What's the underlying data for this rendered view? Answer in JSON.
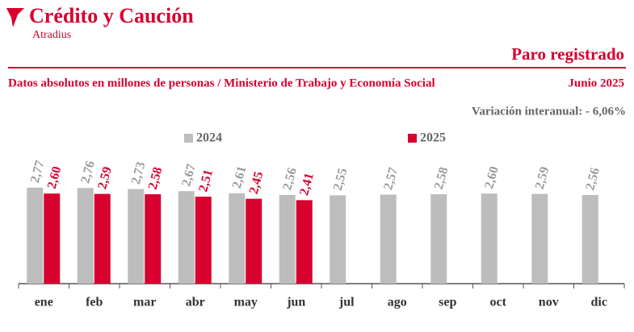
{
  "brand": {
    "name": "Crédito y Caución",
    "sub": "Atradius"
  },
  "chart_data": {
    "type": "bar",
    "title": "Paro registrado",
    "subtitle": "Datos absolutos en millones de personas / Ministerio de Trabajo y Economía Social",
    "date": "Junio 2025",
    "annotation": "Variación interanual: - 6,06%",
    "categories": [
      "ene",
      "feb",
      "mar",
      "abr",
      "may",
      "jun",
      "jul",
      "ago",
      "sep",
      "oct",
      "nov",
      "dic"
    ],
    "series": [
      {
        "name": "2024",
        "color": "#bdbdbd",
        "label_color": "#9a9a9a",
        "values": [
          2.77,
          2.76,
          2.73,
          2.67,
          2.61,
          2.56,
          2.55,
          2.57,
          2.58,
          2.6,
          2.59,
          2.56
        ],
        "value_labels": [
          "2,77",
          "2,76",
          "2,73",
          "2,67",
          "2,61",
          "2,56",
          "2,55",
          "2,57",
          "2,58",
          "2,60",
          "2,59",
          "2,56"
        ]
      },
      {
        "name": "2025",
        "color": "#d7002f",
        "label_color": "#d7002f",
        "values": [
          2.6,
          2.59,
          2.58,
          2.51,
          2.45,
          2.41,
          null,
          null,
          null,
          null,
          null,
          null
        ],
        "value_labels": [
          "2,60",
          "2,59",
          "2,58",
          "2,51",
          "2,45",
          "2,41",
          null,
          null,
          null,
          null,
          null,
          null
        ]
      }
    ]
  }
}
